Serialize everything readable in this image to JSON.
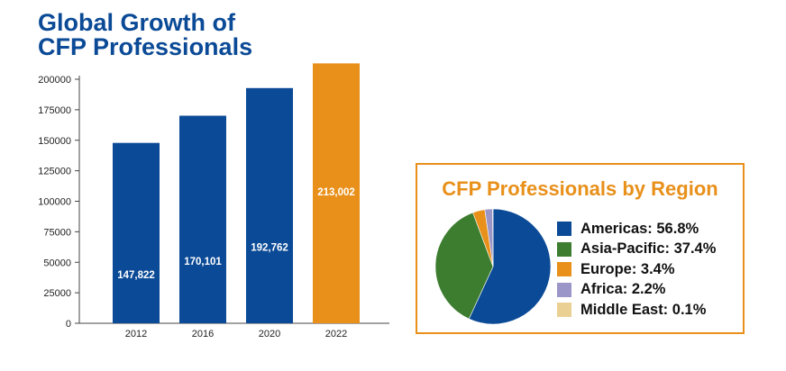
{
  "chart_data": [
    {
      "type": "bar",
      "title": "Global Growth of CFP Professionals",
      "title_lines": [
        "Global Growth of",
        "CFP Professionals"
      ],
      "categories": [
        "2012",
        "2016",
        "2020",
        "2022"
      ],
      "values": [
        147822,
        170101,
        192762,
        213002
      ],
      "data_labels": [
        "147,822",
        "170,101",
        "192,762",
        "213,002"
      ],
      "yticks": [
        0,
        25000,
        50000,
        75000,
        100000,
        125000,
        150000,
        175000,
        200000
      ],
      "ylim": [
        0,
        200000
      ],
      "xlabel": "",
      "ylabel": "",
      "grid": false,
      "colors": [
        "#0b4a96",
        "#0b4a96",
        "#0b4a96",
        "#e8901a"
      ]
    },
    {
      "type": "pie",
      "title": "CFP Professionals by Region",
      "slices": [
        {
          "name": "Americas",
          "value": 56.8,
          "label": "Americas: 56.8%",
          "color": "#0b4a96"
        },
        {
          "name": "Asia-Pacific",
          "value": 37.4,
          "label": "Asia-Pacific: 37.4%",
          "color": "#3c7d2f"
        },
        {
          "name": "Europe",
          "value": 3.4,
          "label": "Europe: 3.4%",
          "color": "#e8901a"
        },
        {
          "name": "Africa",
          "value": 2.2,
          "label": "Africa: 2.2%",
          "color": "#9a96c8"
        },
        {
          "name": "Middle East",
          "value": 0.1,
          "label": "Middle East: 0.1%",
          "color": "#ead092"
        }
      ],
      "legend_position": "right",
      "border_color": "#e8901a"
    }
  ]
}
